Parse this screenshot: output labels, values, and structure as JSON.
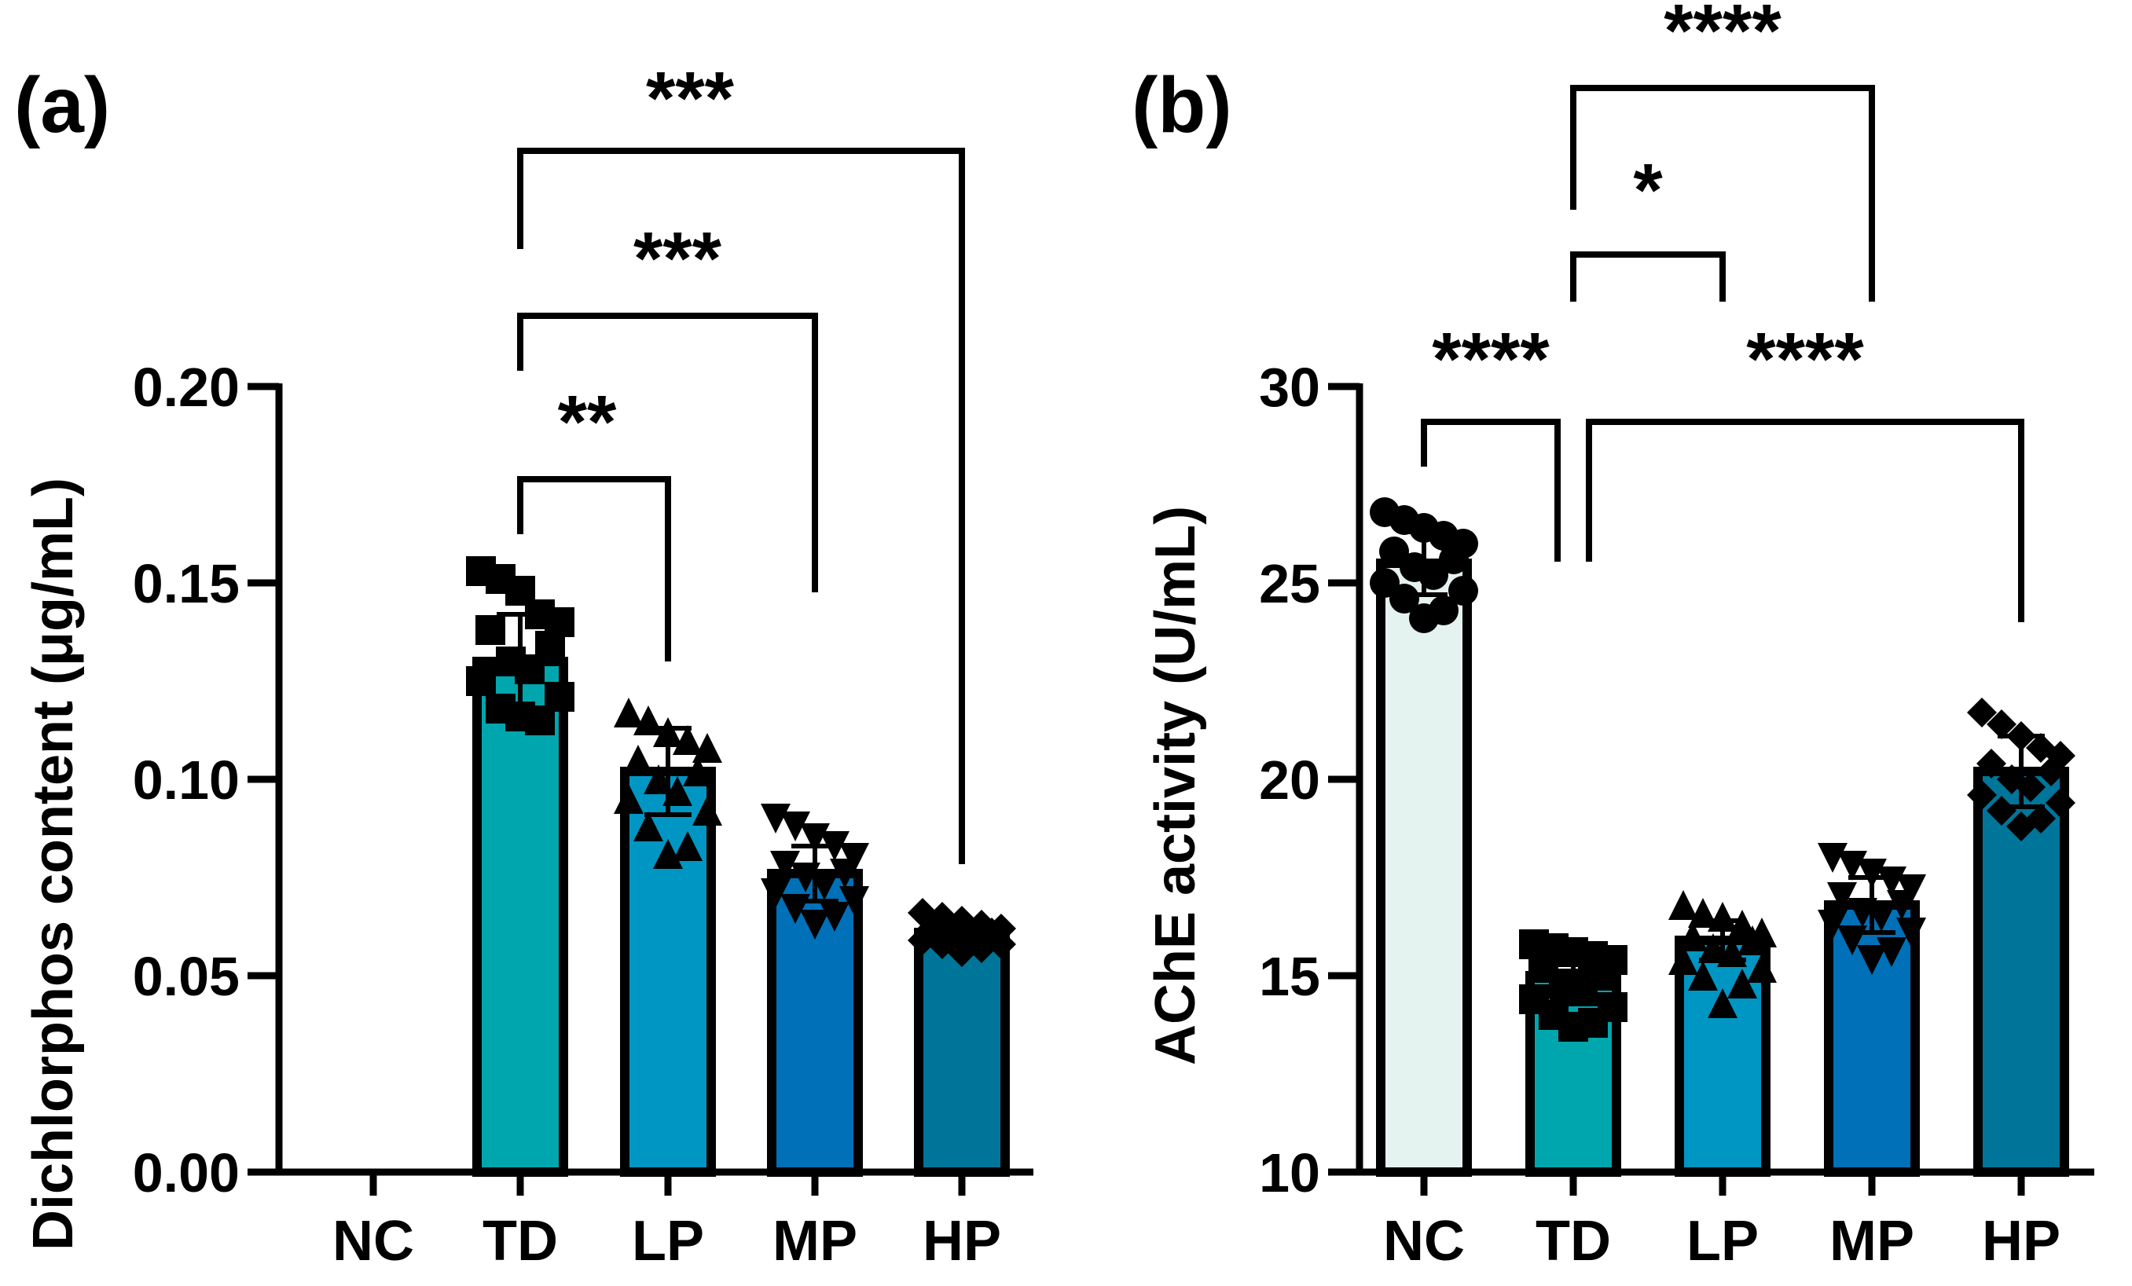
{
  "chart_data": [
    {
      "panel_label": "(a)",
      "type": "bar",
      "ylabel": "Dichlorphos content (μg/mL)",
      "ylim": [
        0,
        0.2
      ],
      "yticks": [
        0,
        0.05,
        0.1,
        0.15,
        0.2
      ],
      "ytick_labels": [
        "0.00",
        "0.05",
        "0.10",
        "0.15",
        "0.20"
      ],
      "categories": [
        "NC",
        "TD",
        "LP",
        "MP",
        "HP"
      ],
      "values": [
        0,
        0.13,
        0.102,
        0.076,
        0.061
      ],
      "errors": [
        0,
        0.012,
        0.011,
        0.007,
        0.003
      ],
      "bar_colors": [
        "#ffffff",
        "#00a6ad",
        "#0096c3",
        "#0070b8",
        "#00759a"
      ],
      "markers": [
        "none",
        "square",
        "triangle-up",
        "triangle-down",
        "diamond"
      ],
      "points": [
        [],
        [
          0.153,
          0.151,
          0.148,
          0.142,
          0.14,
          0.138,
          0.134,
          0.13,
          0.128,
          0.125,
          0.121,
          0.118,
          0.115,
          0.116
        ],
        [
          0.117,
          0.115,
          0.112,
          0.11,
          0.108,
          0.105,
          0.102,
          0.1,
          0.097,
          0.095,
          0.092,
          0.088,
          0.083,
          0.081
        ],
        [
          0.09,
          0.088,
          0.085,
          0.083,
          0.08,
          0.078,
          0.076,
          0.075,
          0.073,
          0.071,
          0.069,
          0.067,
          0.065,
          0.063
        ],
        [
          0.066,
          0.065,
          0.064,
          0.063,
          0.062,
          0.062,
          0.061,
          0.061,
          0.06,
          0.059,
          0.058,
          0.058,
          0.057,
          0.056
        ]
      ],
      "comparisons": [
        {
          "from": "TD",
          "to": "LP",
          "label": "**"
        },
        {
          "from": "TD",
          "to": "MP",
          "label": "***"
        },
        {
          "from": "TD",
          "to": "HP",
          "label": "***"
        }
      ]
    },
    {
      "panel_label": "(b)",
      "type": "bar",
      "ylabel": "AChE activity (U/mL)",
      "ylim": [
        10,
        30
      ],
      "yticks": [
        10,
        15,
        20,
        25,
        30
      ],
      "ytick_labels": [
        "10",
        "15",
        "20",
        "25",
        "30"
      ],
      "categories": [
        "NC",
        "TD",
        "LP",
        "MP",
        "HP"
      ],
      "values": [
        25.5,
        15.0,
        15.9,
        16.8,
        20.2
      ],
      "errors": [
        0.8,
        0.6,
        0.5,
        0.7,
        0.9
      ],
      "bar_colors": [
        "#e4f2f0",
        "#00a6ad",
        "#0096c3",
        "#0070b8",
        "#00759a"
      ],
      "markers": [
        "circle",
        "square",
        "triangle-up",
        "triangle-down",
        "diamond"
      ],
      "points": [
        [
          26.8,
          26.6,
          26.4,
          26.2,
          26.0,
          25.8,
          25.6,
          25.4,
          25.2,
          25.0,
          24.8,
          24.6,
          24.3,
          24.1
        ],
        [
          15.8,
          15.7,
          15.6,
          15.5,
          15.4,
          15.2,
          15.0,
          14.8,
          14.6,
          14.4,
          14.2,
          14.0,
          13.8,
          13.7
        ],
        [
          16.8,
          16.6,
          16.5,
          16.3,
          16.1,
          16.0,
          15.9,
          15.7,
          15.6,
          15.4,
          15.2,
          15.0,
          14.8,
          14.3
        ],
        [
          18.0,
          17.8,
          17.6,
          17.4,
          17.2,
          17.0,
          16.8,
          16.6,
          16.5,
          16.3,
          16.1,
          15.9,
          15.6,
          15.4
        ],
        [
          21.7,
          21.4,
          21.1,
          20.8,
          20.6,
          20.4,
          20.2,
          20.0,
          19.8,
          19.6,
          19.4,
          19.2,
          19.0,
          18.8
        ]
      ],
      "comparisons": [
        {
          "from": "NC",
          "to": "TD",
          "label": "****"
        },
        {
          "from": "TD",
          "to": "LP",
          "label": "*"
        },
        {
          "from": "TD",
          "to": "MP",
          "label": "****"
        },
        {
          "from": "TD",
          "to": "HP",
          "label": "****"
        }
      ]
    }
  ]
}
